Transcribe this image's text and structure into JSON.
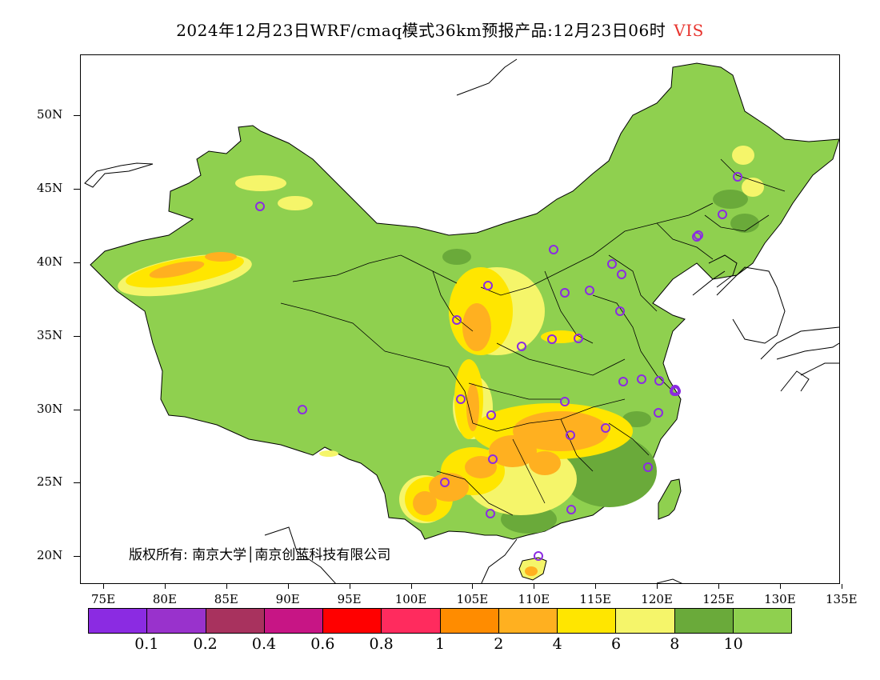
{
  "title": "2024年12月23日WRF/cmaq模式36km预报产品:12月23日06时",
  "variable": "VIS",
  "copyright": "版权所有: 南京大学│南京创蓝科技有限公司",
  "lat_labels": [
    "50N",
    "45N",
    "40N",
    "35N",
    "30N",
    "25N",
    "20N"
  ],
  "lon_labels": [
    "75E",
    "80E",
    "85E",
    "90E",
    "95E",
    "100E",
    "105E",
    "110E",
    "115E",
    "120E",
    "125E",
    "130E",
    "135E"
  ],
  "legend": {
    "colors": [
      "#8b2be2",
      "#9932cc",
      "#a8325e",
      "#c71585",
      "#ff0000",
      "#ff2b5e",
      "#ff8c00",
      "#ffb020",
      "#ffe600",
      "#f5f56a",
      "#6aaa3a",
      "#8fd04f"
    ],
    "labels": [
      "0.1",
      "0.2",
      "0.4",
      "0.6",
      "0.8",
      "1",
      "2",
      "4",
      "6",
      "8",
      "10"
    ]
  },
  "stations": [
    {
      "name": "s1"
    },
    {
      "name": "s2"
    },
    {
      "name": "s3"
    },
    {
      "name": "s4"
    },
    {
      "name": "s5"
    },
    {
      "name": "s6"
    },
    {
      "name": "s7"
    },
    {
      "name": "s8"
    },
    {
      "name": "s9"
    },
    {
      "name": "s10"
    },
    {
      "name": "s11"
    },
    {
      "name": "s12"
    },
    {
      "name": "s13"
    },
    {
      "name": "s14"
    },
    {
      "name": "s15"
    },
    {
      "name": "s16"
    },
    {
      "name": "s17"
    },
    {
      "name": "s18"
    },
    {
      "name": "s19"
    },
    {
      "name": "s20"
    },
    {
      "name": "s21"
    },
    {
      "name": "s22"
    },
    {
      "name": "s23"
    },
    {
      "name": "s24"
    },
    {
      "name": "s25"
    },
    {
      "name": "s26"
    },
    {
      "name": "s27"
    },
    {
      "name": "s28"
    },
    {
      "name": "s29"
    }
  ]
}
